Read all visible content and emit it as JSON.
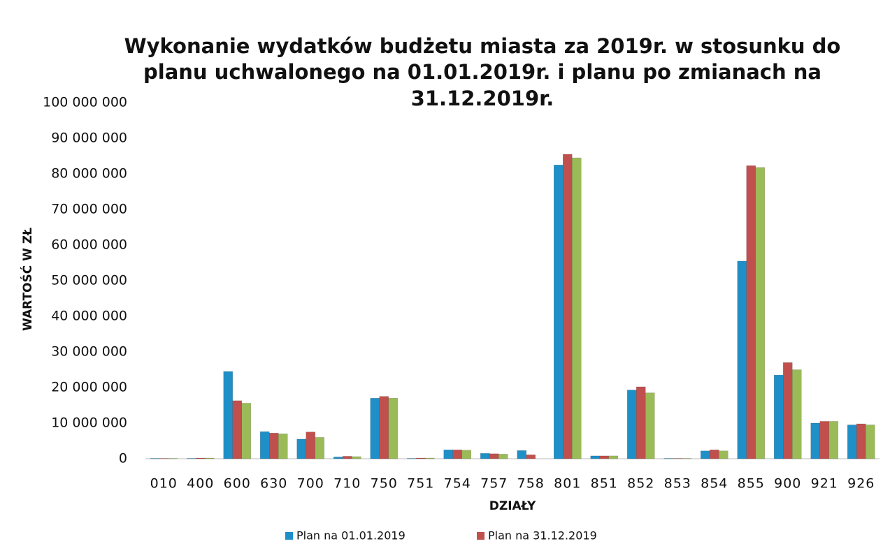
{
  "chart_data": {
    "type": "bar",
    "title_lines": [
      "Wykonanie wydatków budżetu miasta za 2019r. w stosunku do",
      "planu uchwalonego na 01.01.2019r. i planu po zmianach na",
      "31.12.2019r."
    ],
    "x_label": "DZIAŁY",
    "y_label": "WARTOŚĆ W ZŁ",
    "categories": [
      "010",
      "400",
      "600",
      "630",
      "700",
      "710",
      "750",
      "751",
      "754",
      "757",
      "758",
      "801",
      "851",
      "852",
      "853",
      "854",
      "855",
      "900",
      "921",
      "926"
    ],
    "series": [
      {
        "name": "Plan na 01.01.2019",
        "color": "#1f8fc8",
        "values": [
          100000,
          100000,
          24500000,
          7600000,
          5500000,
          500000,
          17000000,
          100000,
          2500000,
          1500000,
          2300000,
          82500000,
          800000,
          19300000,
          100000,
          2200000,
          55500000,
          23500000,
          10000000,
          9500000
        ]
      },
      {
        "name": "Plan na 31.12.2019",
        "color": "#c0504d",
        "values": [
          100000,
          200000,
          16300000,
          7200000,
          7500000,
          700000,
          17500000,
          200000,
          2500000,
          1400000,
          1100000,
          85500000,
          800000,
          20200000,
          100000,
          2500000,
          82300000,
          27000000,
          10500000,
          9800000
        ]
      },
      {
        "color": "#9bbb59",
        "values": [
          100000,
          200000,
          15600000,
          7000000,
          6000000,
          600000,
          17000000,
          200000,
          2400000,
          1300000,
          0,
          84500000,
          800000,
          18500000,
          100000,
          2200000,
          81800000,
          25000000,
          10500000,
          9500000
        ]
      }
    ],
    "ylim": [
      0,
      100000000
    ],
    "yticks": [
      0,
      {
        "value": 10000000,
        "label": "10 000 000"
      },
      {
        "value": 20000000,
        "label": "20 000 000"
      },
      {
        "value": 30000000,
        "label": "30 000 000"
      },
      {
        "value": 40000000,
        "label": "40 000 000"
      },
      {
        "value": 50000000,
        "label": "50 000 000"
      },
      {
        "value": 60000000,
        "label": "60 000 000"
      },
      {
        "value": 70000000,
        "label": "70 000 000"
      },
      {
        "value": 80000000,
        "label": "80 000 000"
      },
      {
        "value": 90000000,
        "label": "90 000 000"
      },
      {
        "value": 100000000,
        "label": "100 000 000"
      }
    ],
    "legend": "bottom"
  }
}
